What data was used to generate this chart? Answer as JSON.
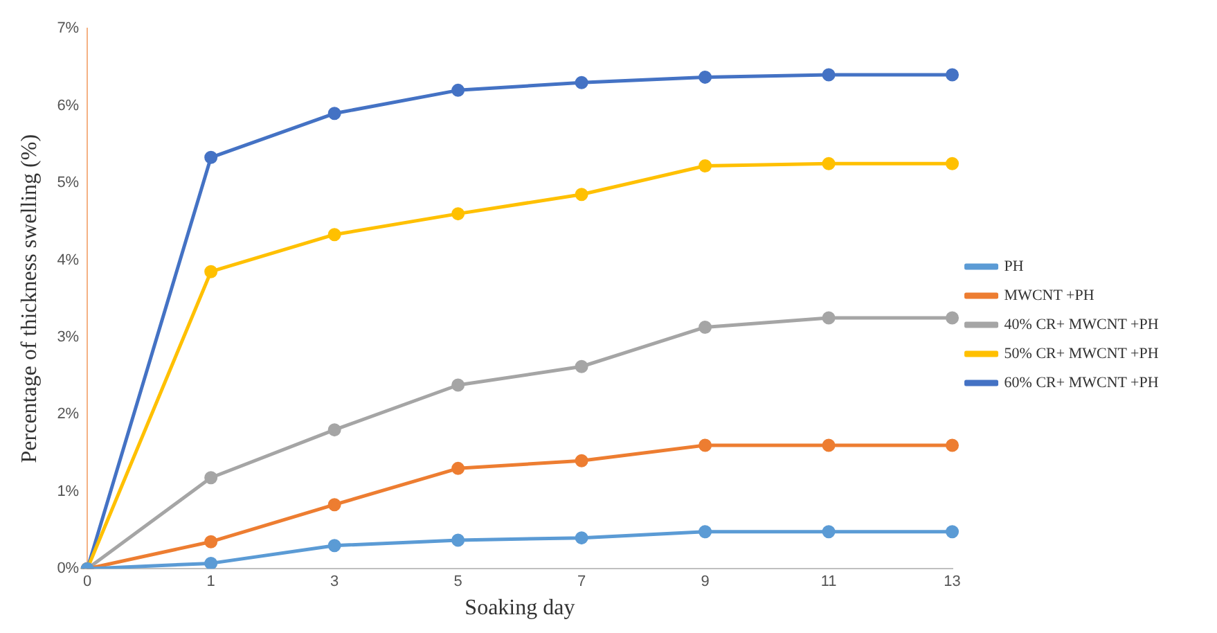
{
  "chart_data": {
    "type": "line",
    "xlabel": "Soaking day",
    "ylabel": "Percentage of thickness swelling (%)",
    "categories": [
      "0",
      "1",
      "3",
      "5",
      "7",
      "9",
      "11",
      "13"
    ],
    "series": [
      {
        "name": "PH",
        "color": "#5b9bd5",
        "values": [
          0,
          0.07,
          0.3,
          0.37,
          0.4,
          0.48,
          0.48,
          0.48
        ]
      },
      {
        "name": "MWCNT +PH",
        "color": "#ed7d31",
        "values": [
          0,
          0.35,
          0.83,
          1.3,
          1.4,
          1.6,
          1.6,
          1.6
        ]
      },
      {
        "name": "40% CR+ MWCNT +PH",
        "color": "#a5a5a5",
        "values": [
          0,
          1.18,
          1.8,
          2.38,
          2.62,
          3.13,
          3.25,
          3.25
        ]
      },
      {
        "name": "50% CR+ MWCNT +PH",
        "color": "#ffc000",
        "values": [
          0,
          3.85,
          4.33,
          4.6,
          4.85,
          5.22,
          5.25,
          5.25
        ]
      },
      {
        "name": "60% CR+ MWCNT +PH",
        "color": "#4472c4",
        "values": [
          0,
          5.33,
          5.9,
          6.2,
          6.3,
          6.37,
          6.4,
          6.4
        ]
      }
    ],
    "ylim": [
      0,
      7
    ],
    "yticks": [
      {
        "value": 0,
        "label": "0%"
      },
      {
        "value": 1,
        "label": "1%"
      },
      {
        "value": 2,
        "label": "2%"
      },
      {
        "value": 3,
        "label": "3%"
      },
      {
        "value": 4,
        "label": "4%"
      },
      {
        "value": 5,
        "label": "5%"
      },
      {
        "value": 6,
        "label": "6%"
      },
      {
        "value": 7,
        "label": "7%"
      }
    ],
    "grid": false,
    "legend": "right",
    "marker": "circle",
    "line_style": "solid"
  }
}
